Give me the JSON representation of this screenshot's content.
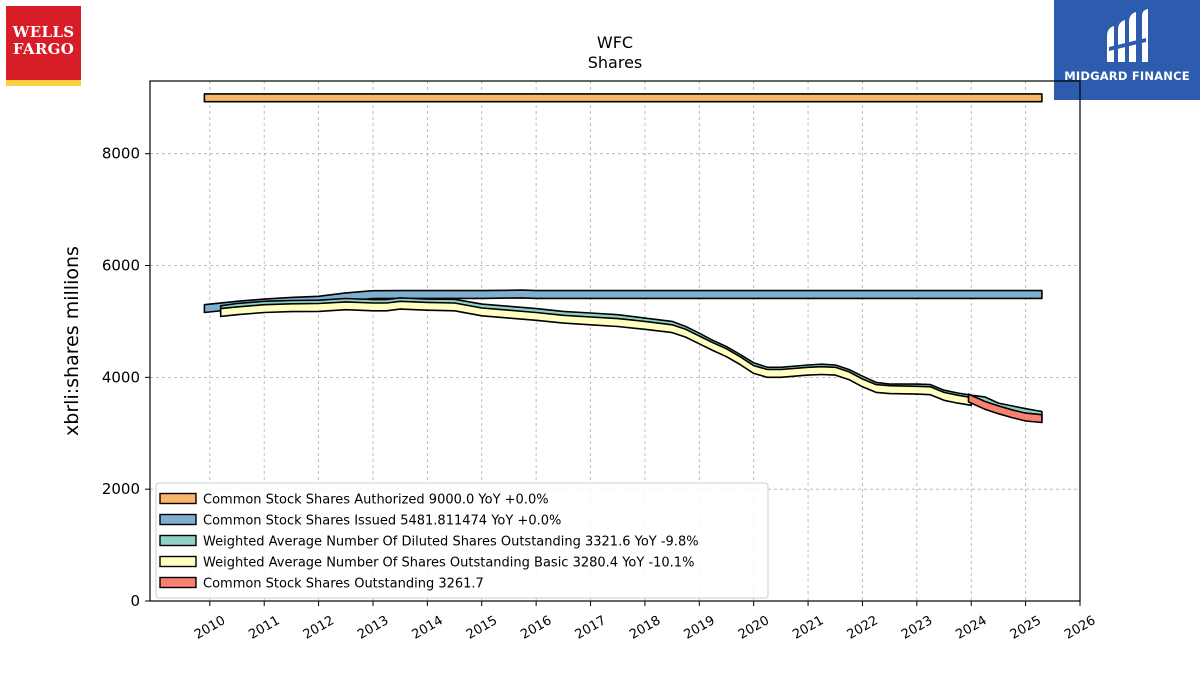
{
  "logos": {
    "left_text_line1": "WELLS",
    "left_text_line2": "FARGO",
    "right_text": "MIDGARD FINANCE"
  },
  "chart_data": {
    "type": "area",
    "title": "WFC",
    "subtitle": "Shares",
    "xlabel": "",
    "ylabel": "xbrli:shares millions",
    "xlim": [
      2008.9,
      2026.0
    ],
    "ylim": [
      0,
      9300
    ],
    "xticks": [
      2010,
      2011,
      2012,
      2013,
      2014,
      2015,
      2016,
      2017,
      2018,
      2019,
      2020,
      2021,
      2022,
      2023,
      2024,
      2025,
      2026
    ],
    "yticks": [
      0,
      2000,
      4000,
      6000,
      8000
    ],
    "grid": true,
    "legend_position": "lower-left",
    "band_half_width": 70,
    "series": [
      {
        "key": "authorized",
        "legend": "Common Stock Shares Authorized  9000.0 YoY +0.0%",
        "color": "#f9b56a",
        "x": [
          2009.9,
          2025.3
        ],
        "y": [
          9000,
          9000
        ]
      },
      {
        "key": "issued",
        "legend": "Common Stock Shares Issued  5481.811474 YoY +0.0%",
        "color": "#7faed1",
        "x": [
          2009.9,
          2010.5,
          2011.0,
          2011.5,
          2012.0,
          2012.5,
          2013.0,
          2013.5,
          2014.0,
          2015.0,
          2015.75,
          2016.0,
          2017.0,
          2018.0,
          2019.0,
          2020.0,
          2021.0,
          2022.0,
          2023.0,
          2024.0,
          2025.3
        ],
        "y": [
          5230,
          5290,
          5330,
          5360,
          5380,
          5440,
          5480,
          5481,
          5481,
          5481,
          5490,
          5481,
          5481,
          5481,
          5481,
          5481,
          5481,
          5481,
          5481,
          5481,
          5481
        ]
      },
      {
        "key": "diluted",
        "legend": "Weighted Average Number Of Diluted Shares Outstanding  3321.6 YoY -9.8%",
        "color": "#8ed3c3",
        "x": [
          2010.2,
          2010.5,
          2011.0,
          2011.5,
          2012.0,
          2012.5,
          2013.0,
          2013.25,
          2013.5,
          2014.0,
          2014.5,
          2015.0,
          2015.5,
          2016.0,
          2016.5,
          2017.0,
          2017.5,
          2018.0,
          2018.5,
          2018.75,
          2019.0,
          2019.25,
          2019.5,
          2019.75,
          2020.0,
          2020.25,
          2020.5,
          2021.0,
          2021.25,
          2021.5,
          2021.75,
          2022.0,
          2022.25,
          2022.5,
          2023.0,
          2023.25,
          2023.5,
          2023.75,
          2024.0,
          2024.25,
          2024.5,
          2024.75,
          2025.0,
          2025.3
        ],
        "y": [
          5210,
          5250,
          5290,
          5305,
          5310,
          5340,
          5320,
          5320,
          5350,
          5330,
          5325,
          5240,
          5200,
          5160,
          5110,
          5080,
          5050,
          4990,
          4930,
          4840,
          4720,
          4590,
          4480,
          4340,
          4190,
          4110,
          4110,
          4150,
          4165,
          4150,
          4070,
          3950,
          3840,
          3810,
          3810,
          3800,
          3700,
          3650,
          3610,
          3580,
          3470,
          3420,
          3370,
          3320
        ]
      },
      {
        "key": "basic",
        "legend": "Weighted Average Number Of Shares Outstanding Basic  3280.4 YoY -10.1%",
        "color": "#ffffbf",
        "x": [
          2010.2,
          2010.5,
          2011.0,
          2011.5,
          2012.0,
          2012.5,
          2013.0,
          2013.25,
          2013.5,
          2014.0,
          2014.5,
          2015.0,
          2015.5,
          2016.0,
          2016.5,
          2017.0,
          2017.5,
          2018.0,
          2018.5,
          2018.75,
          2019.0,
          2019.25,
          2019.5,
          2019.75,
          2020.0,
          2020.25,
          2020.5,
          2021.0,
          2021.25,
          2021.5,
          2021.75,
          2022.0,
          2022.25,
          2022.5,
          2023.0,
          2023.25,
          2023.5,
          2023.75,
          2024.0
        ],
        "y": [
          5160,
          5190,
          5230,
          5245,
          5250,
          5280,
          5260,
          5260,
          5290,
          5270,
          5260,
          5170,
          5130,
          5090,
          5040,
          5010,
          4980,
          4930,
          4870,
          4790,
          4670,
          4550,
          4440,
          4300,
          4140,
          4070,
          4070,
          4110,
          4120,
          4110,
          4030,
          3900,
          3800,
          3780,
          3770,
          3760,
          3660,
          3610,
          3570
        ]
      },
      {
        "key": "outstanding",
        "legend": "Common Stock Shares Outstanding  3261.7",
        "color": "#fa8072",
        "x": [
          2023.95,
          2024.25,
          2024.5,
          2024.75,
          2025.0,
          2025.3
        ],
        "y": [
          3630,
          3500,
          3420,
          3350,
          3290,
          3262
        ]
      }
    ]
  }
}
